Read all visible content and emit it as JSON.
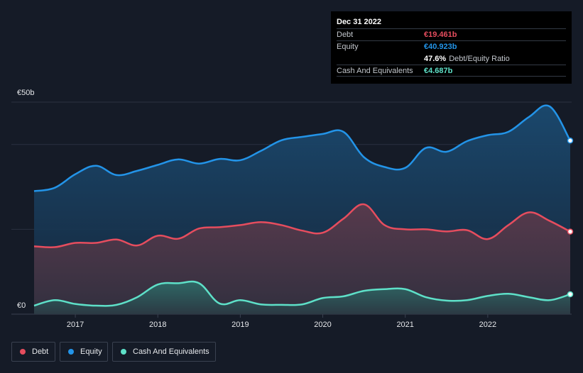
{
  "tooltip": {
    "date": "Dec 31 2022",
    "debt_label": "Debt",
    "debt_value": "€19.461b",
    "equity_label": "Equity",
    "equity_value": "€40.923b",
    "ratio_value": "47.6%",
    "ratio_label": "Debt/Equity Ratio",
    "cash_label": "Cash And Equivalents",
    "cash_value": "€4.687b"
  },
  "legend": [
    {
      "label": "Debt",
      "color": "#e64d5e"
    },
    {
      "label": "Equity",
      "color": "#2394e8"
    },
    {
      "label": "Cash And Equivalents",
      "color": "#5ee0c8"
    }
  ],
  "chart_data": {
    "type": "area",
    "y_axis_labels": [
      "€50b",
      "€0"
    ],
    "ylim": [
      0,
      50
    ],
    "xlim": [
      2016.5,
      2023.0
    ],
    "x_ticks": [
      2017,
      2018,
      2019,
      2020,
      2021,
      2022
    ],
    "x_tick_labels": [
      "2017",
      "2018",
      "2019",
      "2020",
      "2021",
      "2022"
    ],
    "grid": true,
    "legend_position": "bottom-left",
    "series": [
      {
        "name": "Equity",
        "color": "#2394e8",
        "x": [
          2016.5,
          2016.75,
          2017.0,
          2017.25,
          2017.5,
          2017.75,
          2018.0,
          2018.25,
          2018.5,
          2018.75,
          2019.0,
          2019.25,
          2019.5,
          2019.75,
          2020.0,
          2020.25,
          2020.5,
          2020.75,
          2021.0,
          2021.25,
          2021.5,
          2021.75,
          2022.0,
          2022.25,
          2022.5,
          2022.75,
          2023.0
        ],
        "y": [
          29.0,
          29.8,
          33.0,
          35.0,
          32.8,
          33.8,
          35.2,
          36.5,
          35.5,
          36.6,
          36.3,
          38.5,
          41.0,
          41.8,
          42.5,
          43.0,
          37.0,
          34.7,
          34.5,
          39.2,
          38.3,
          40.8,
          42.2,
          43.0,
          46.5,
          49.0,
          40.923
        ]
      },
      {
        "name": "Debt",
        "color": "#e64d5e",
        "x": [
          2016.5,
          2016.75,
          2017.0,
          2017.25,
          2017.5,
          2017.75,
          2018.0,
          2018.25,
          2018.5,
          2018.75,
          2019.0,
          2019.25,
          2019.5,
          2019.75,
          2020.0,
          2020.25,
          2020.5,
          2020.75,
          2021.0,
          2021.25,
          2021.5,
          2021.75,
          2022.0,
          2022.25,
          2022.5,
          2022.75,
          2023.0
        ],
        "y": [
          16.0,
          15.8,
          16.8,
          16.8,
          17.6,
          16.2,
          18.5,
          17.8,
          20.2,
          20.5,
          21.0,
          21.7,
          21.0,
          19.7,
          19.2,
          22.5,
          25.9,
          21.0,
          20.0,
          20.0,
          19.5,
          19.8,
          17.7,
          21.0,
          24.0,
          22.0,
          19.461
        ]
      },
      {
        "name": "Cash And Equivalents",
        "color": "#5ee0c8",
        "x": [
          2016.5,
          2016.75,
          2017.0,
          2017.25,
          2017.5,
          2017.75,
          2018.0,
          2018.25,
          2018.5,
          2018.75,
          2019.0,
          2019.25,
          2019.5,
          2019.75,
          2020.0,
          2020.25,
          2020.5,
          2020.75,
          2021.0,
          2021.25,
          2021.5,
          2021.75,
          2022.0,
          2022.25,
          2022.5,
          2022.75,
          2023.0
        ],
        "y": [
          2.0,
          3.3,
          2.4,
          2.0,
          2.2,
          4.0,
          7.0,
          7.3,
          7.3,
          2.5,
          3.3,
          2.3,
          2.2,
          2.3,
          3.8,
          4.2,
          5.5,
          5.9,
          5.9,
          4.0,
          3.2,
          3.3,
          4.3,
          4.8,
          4.0,
          3.3,
          4.687
        ]
      }
    ]
  }
}
